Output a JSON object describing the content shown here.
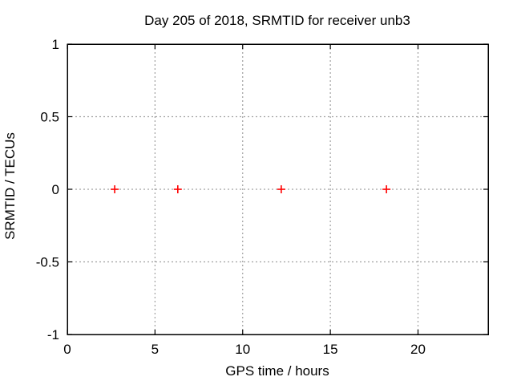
{
  "chart_data": {
    "type": "scatter",
    "title": "Day 205 of 2018, SRMTID for receiver unb3",
    "xlabel": "GPS time / hours",
    "ylabel": "SRMTID / TECUs",
    "xlim": [
      0,
      24
    ],
    "ylim": [
      -1,
      1
    ],
    "xticks": [
      0,
      5,
      10,
      15,
      20
    ],
    "yticks": [
      -1,
      -0.5,
      0,
      0.5,
      1
    ],
    "grid": true,
    "grid_color": "#a0a0a0",
    "border_color": "#000000",
    "background_color": "#ffffff",
    "legend_position": "none",
    "series": [
      {
        "name": "SRMTID",
        "marker": "plus",
        "marker_color": "#ff0000",
        "points": [
          {
            "x": 2.7,
            "y": 0
          },
          {
            "x": 6.3,
            "y": 0
          },
          {
            "x": 12.2,
            "y": 0
          },
          {
            "x": 18.2,
            "y": 0
          }
        ]
      }
    ]
  },
  "layout_text": {
    "title": "Day 205 of 2018, SRMTID for receiver unb3",
    "xlabel": "GPS time / hours",
    "ylabel": "SRMTID / TECUs"
  }
}
